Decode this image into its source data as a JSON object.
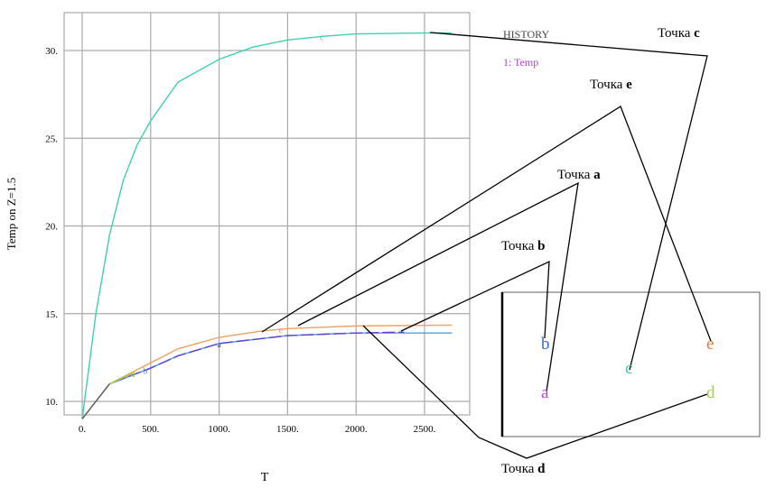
{
  "chart_data": {
    "type": "line",
    "xlabel": "T",
    "ylabel": "Temp on Z=1.5",
    "xlim": [
      -130,
      2830
    ],
    "ylim": [
      8,
      32.2
    ],
    "xticks": [
      0,
      500,
      1000,
      1500,
      2000,
      2500
    ],
    "xtick_labels": [
      "0.",
      "500.",
      "1000.",
      "1500.",
      "2000.",
      "2500."
    ],
    "yticks": [
      10,
      15,
      20,
      25,
      30
    ],
    "ytick_labels": [
      "10.",
      "15.",
      "20.",
      "25.",
      "30."
    ],
    "grid": true,
    "legend": {
      "title": "HISTORY",
      "entry": "1: Temp",
      "entry_color": "#b040d0"
    },
    "series": [
      {
        "name": "c",
        "color": "#40d0b0",
        "marker_at": 1750,
        "x": [
          0,
          100,
          200,
          300,
          400,
          500,
          700,
          1000,
          1250,
          1500,
          1750,
          2000,
          2500,
          2700
        ],
        "y": [
          9,
          15,
          19.5,
          22.6,
          24.6,
          26,
          28.2,
          29.5,
          30.2,
          30.6,
          30.8,
          30.95,
          31,
          31
        ]
      },
      {
        "name": "e",
        "color": "#f0a060",
        "marker_at": 1450,
        "x": [
          0,
          200,
          400,
          500,
          700,
          1000,
          1300,
          1500,
          2000,
          2700
        ],
        "y": [
          9,
          11,
          11.8,
          12.2,
          13,
          13.65,
          14,
          14.15,
          14.3,
          14.35
        ]
      },
      {
        "name": "b",
        "color": "#50a0e0",
        "marker_at": 460,
        "x": [
          0,
          200,
          500,
          700,
          1000,
          1500,
          2000,
          2700
        ],
        "y": [
          9,
          11,
          11.9,
          12.6,
          13.3,
          13.75,
          13.9,
          13.9
        ]
      },
      {
        "name": "a",
        "color": "#6040d0",
        "dashed": true,
        "marker_at": 1000,
        "x": [
          0,
          200,
          500,
          700,
          1000,
          1500,
          2000,
          2350
        ],
        "y": [
          9,
          11,
          11.9,
          12.6,
          13.3,
          13.75,
          13.9,
          13.95
        ]
      },
      {
        "name": "d",
        "color": "#a0d040",
        "marker_at": 370,
        "x": [
          0,
          200,
          370
        ],
        "y": [
          9,
          11,
          11.6
        ]
      }
    ]
  },
  "annotations": {
    "prefix": "Точка",
    "points": [
      {
        "letter": "c",
        "color": "#40d0b0"
      },
      {
        "letter": "e",
        "color": "#f07030"
      },
      {
        "letter": "a",
        "color": "#c040e0"
      },
      {
        "letter": "b",
        "color": "#3070d0"
      },
      {
        "letter": "d",
        "color": "#a0d040"
      }
    ]
  }
}
